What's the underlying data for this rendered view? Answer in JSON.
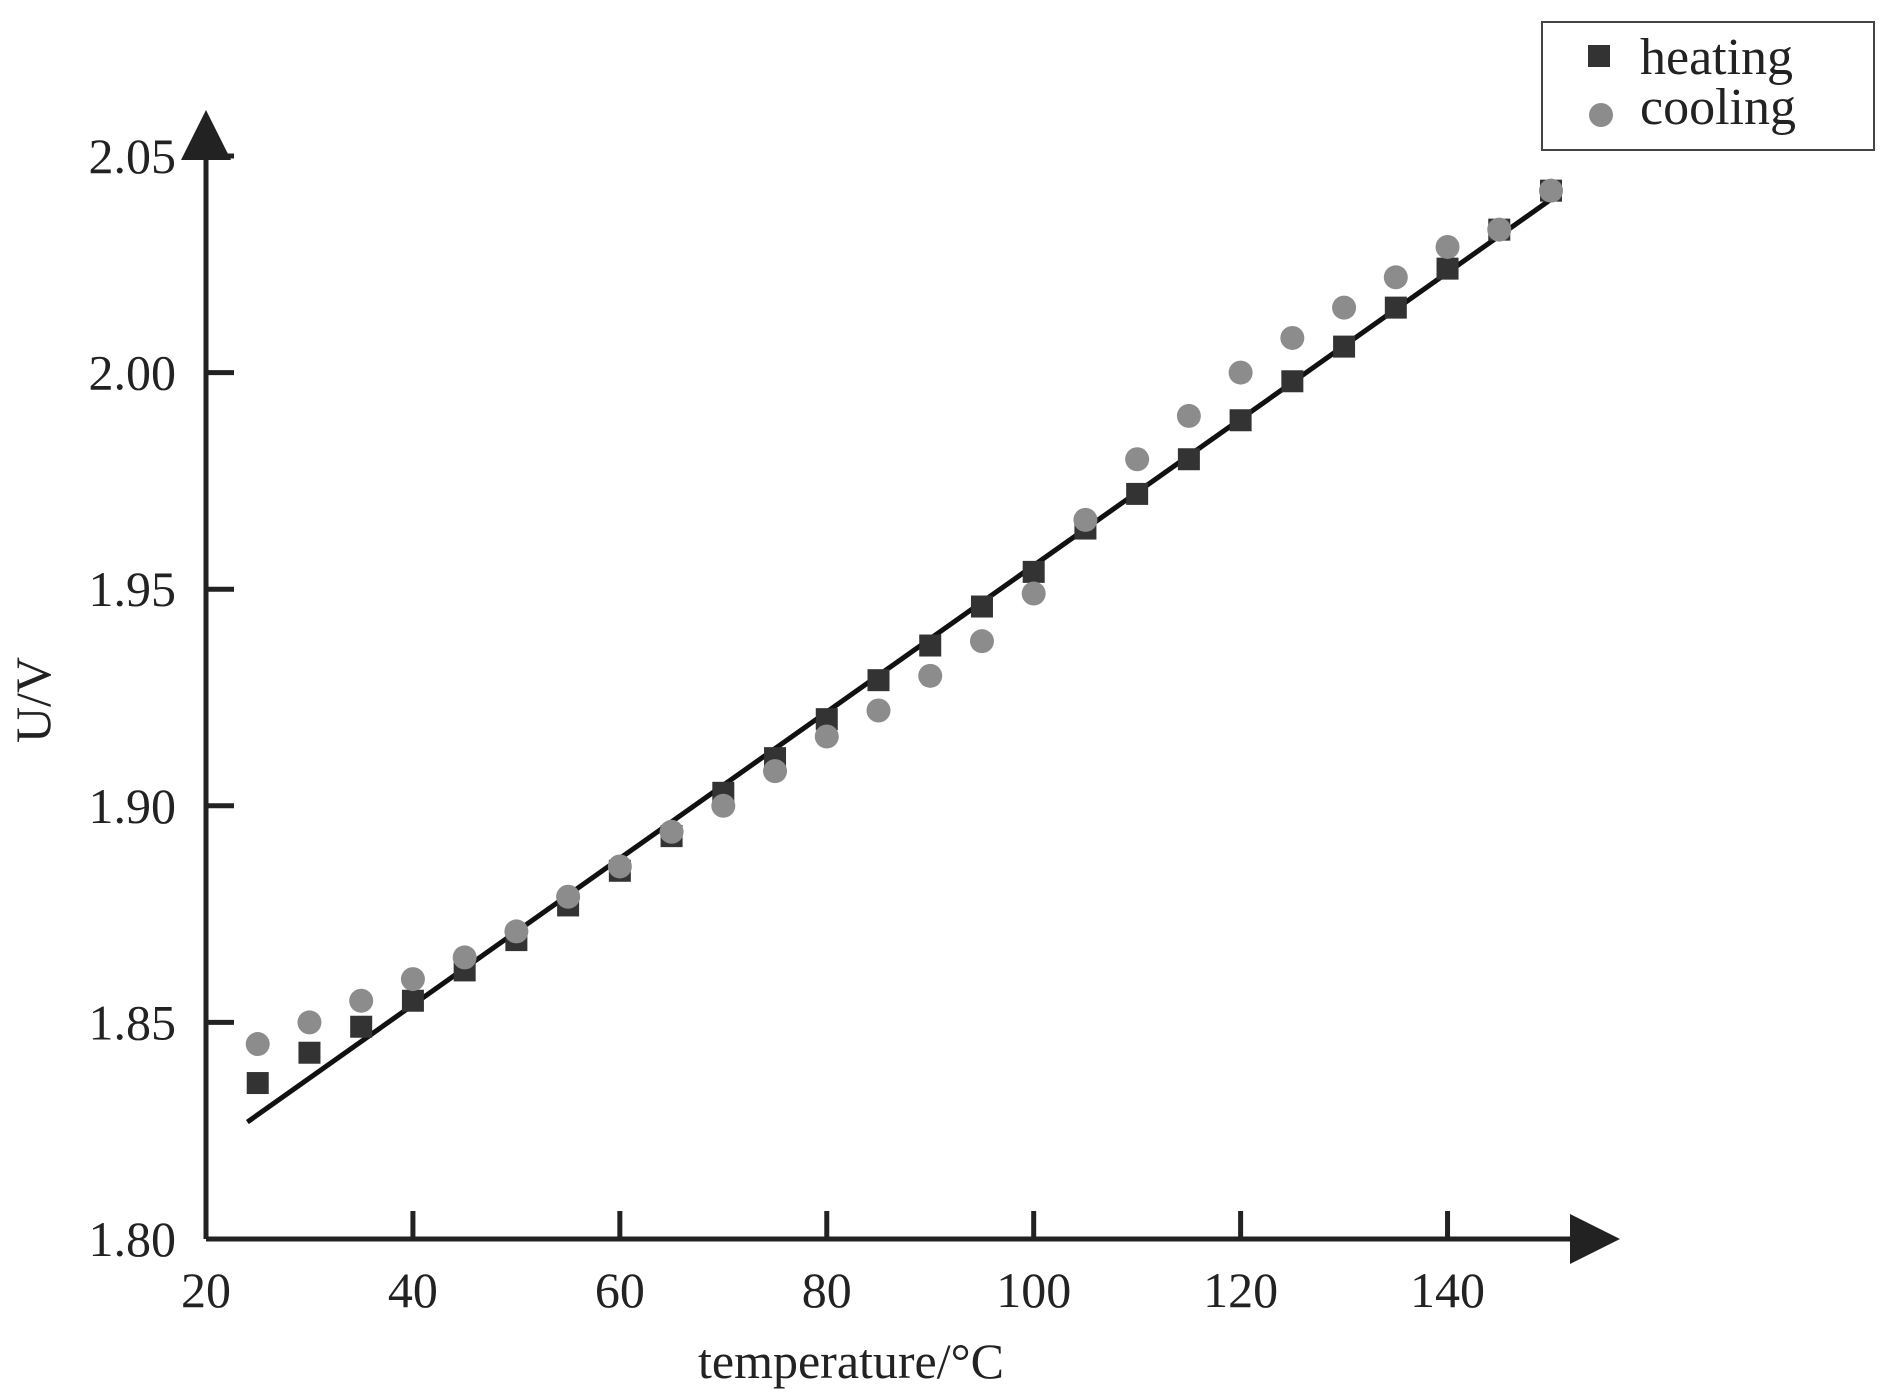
{
  "chart_data": {
    "type": "scatter",
    "title": "",
    "xlabel": "temperature/°C",
    "ylabel": "U/V",
    "xlim": [
      20,
      155
    ],
    "ylim": [
      1.8,
      2.05
    ],
    "x_ticks": [
      20,
      40,
      60,
      80,
      100,
      120,
      140
    ],
    "x_tick_labels": [
      "20",
      "40",
      "60",
      "80",
      "100",
      "120",
      "140"
    ],
    "y_ticks": [
      1.8,
      1.85,
      1.9,
      1.95,
      2.0,
      2.05
    ],
    "y_tick_labels": [
      "1.80",
      "1.85",
      "1.90",
      "1.95",
      "2.00",
      "2.05"
    ],
    "grid": false,
    "legend_position": "top-right",
    "series": [
      {
        "name": "heating",
        "marker": "square",
        "color": "#333333",
        "points": [
          [
            25,
            1.836
          ],
          [
            30,
            1.843
          ],
          [
            35,
            1.849
          ],
          [
            40,
            1.855
          ],
          [
            45,
            1.862
          ],
          [
            50,
            1.869
          ],
          [
            55,
            1.877
          ],
          [
            60,
            1.885
          ],
          [
            65,
            1.893
          ],
          [
            70,
            1.903
          ],
          [
            75,
            1.911
          ],
          [
            80,
            1.92
          ],
          [
            85,
            1.929
          ],
          [
            90,
            1.937
          ],
          [
            95,
            1.946
          ],
          [
            100,
            1.954
          ],
          [
            105,
            1.964
          ],
          [
            110,
            1.972
          ],
          [
            115,
            1.98
          ],
          [
            120,
            1.989
          ],
          [
            125,
            1.998
          ],
          [
            130,
            2.006
          ],
          [
            135,
            2.015
          ],
          [
            140,
            2.024
          ],
          [
            145,
            2.033
          ],
          [
            150,
            2.042
          ]
        ]
      },
      {
        "name": "cooling",
        "marker": "circle",
        "color": "#8c8c8c",
        "points": [
          [
            25,
            1.845
          ],
          [
            30,
            1.85
          ],
          [
            35,
            1.855
          ],
          [
            40,
            1.86
          ],
          [
            45,
            1.865
          ],
          [
            50,
            1.871
          ],
          [
            55,
            1.879
          ],
          [
            60,
            1.886
          ],
          [
            65,
            1.894
          ],
          [
            70,
            1.9
          ],
          [
            75,
            1.908
          ],
          [
            80,
            1.916
          ],
          [
            85,
            1.922
          ],
          [
            90,
            1.93
          ],
          [
            95,
            1.938
          ],
          [
            100,
            1.949
          ],
          [
            105,
            1.966
          ],
          [
            110,
            1.98
          ],
          [
            115,
            1.99
          ],
          [
            120,
            2.0
          ],
          [
            125,
            2.008
          ],
          [
            130,
            2.015
          ],
          [
            135,
            2.022
          ],
          [
            140,
            2.029
          ],
          [
            145,
            2.033
          ],
          [
            150,
            2.042
          ]
        ]
      }
    ],
    "fit_line": {
      "color": "#111111",
      "points": [
        [
          24,
          1.827
        ],
        [
          150,
          2.04
        ]
      ]
    }
  }
}
